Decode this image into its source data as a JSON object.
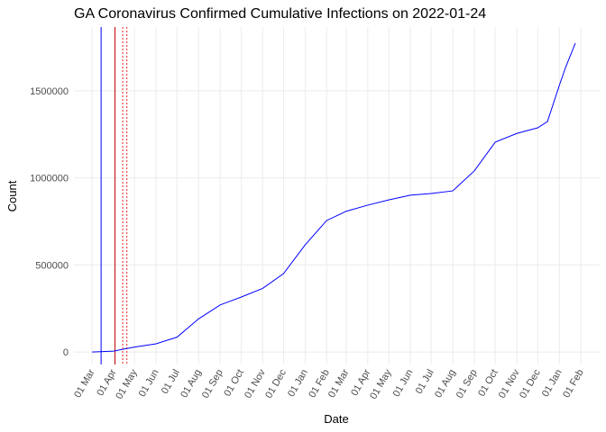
{
  "chart_data": {
    "type": "line",
    "title": "GA Coronavirus Confirmed Cumulative Infections on 2022-01-24",
    "x_label": "Date",
    "y_label": "Count",
    "x": [
      "2020-03-01",
      "2020-04-01",
      "2020-05-01",
      "2020-06-01",
      "2020-07-01",
      "2020-08-01",
      "2020-09-01",
      "2020-10-01",
      "2020-11-01",
      "2020-12-01",
      "2021-01-01",
      "2021-02-01",
      "2021-03-01",
      "2021-04-01",
      "2021-05-01",
      "2021-06-01",
      "2021-07-01",
      "2021-08-01",
      "2021-09-01",
      "2021-10-01",
      "2021-11-01",
      "2021-12-01",
      "2021-12-15",
      "2022-01-01",
      "2022-01-10",
      "2022-01-24"
    ],
    "series": [
      {
        "name": "Confirmed",
        "color": "#0000ff",
        "values": [
          0,
          5000,
          28000,
          47000,
          85000,
          190000,
          270000,
          315000,
          365000,
          450000,
          615000,
          755000,
          808000,
          843000,
          873000,
          900000,
          910000,
          925000,
          1040000,
          1205000,
          1255000,
          1287000,
          1323000,
          1530000,
          1634000,
          1773000
        ]
      }
    ],
    "xlim": [
      "2020-02-04",
      "2022-02-28"
    ],
    "xticks": [
      {
        "value": "2020-03-01",
        "label": "01 Mar"
      },
      {
        "value": "2020-04-01",
        "label": "01 Apr"
      },
      {
        "value": "2020-05-01",
        "label": "01 May"
      },
      {
        "value": "2020-06-01",
        "label": "01 Jun"
      },
      {
        "value": "2020-07-01",
        "label": "01 Jul"
      },
      {
        "value": "2020-08-01",
        "label": "01 Aug"
      },
      {
        "value": "2020-09-01",
        "label": "01 Sep"
      },
      {
        "value": "2020-10-01",
        "label": "01 Oct"
      },
      {
        "value": "2020-11-01",
        "label": "01 Nov"
      },
      {
        "value": "2020-12-01",
        "label": "01 Dec"
      },
      {
        "value": "2021-01-01",
        "label": "01 Jan"
      },
      {
        "value": "2021-02-01",
        "label": "01 Feb"
      },
      {
        "value": "2021-03-01",
        "label": "01 Mar"
      },
      {
        "value": "2021-04-01",
        "label": "01 Apr"
      },
      {
        "value": "2021-05-01",
        "label": "01 May"
      },
      {
        "value": "2021-06-01",
        "label": "01 Jun"
      },
      {
        "value": "2021-07-01",
        "label": "01 Jul"
      },
      {
        "value": "2021-08-01",
        "label": "01 Aug"
      },
      {
        "value": "2021-09-01",
        "label": "01 Sep"
      },
      {
        "value": "2021-10-01",
        "label": "01 Oct"
      },
      {
        "value": "2021-11-01",
        "label": "01 Nov"
      },
      {
        "value": "2021-12-01",
        "label": "01 Dec"
      },
      {
        "value": "2022-01-01",
        "label": "01 Jan"
      },
      {
        "value": "2022-02-01",
        "label": "01 Feb"
      }
    ],
    "ylim": [
      -72000,
      1866000
    ],
    "yticks": [
      0,
      500000,
      1000000,
      1500000
    ],
    "grid": true,
    "vlines": [
      {
        "x": "2020-03-14",
        "color": "#0000ff",
        "dash": false
      },
      {
        "x": "2020-04-03",
        "color": "#cc0000",
        "dash": false
      },
      {
        "x": "2020-04-14",
        "color": "#ee2222",
        "dash": true
      },
      {
        "x": "2020-04-20",
        "color": "#ee2222",
        "dash": true
      }
    ]
  }
}
